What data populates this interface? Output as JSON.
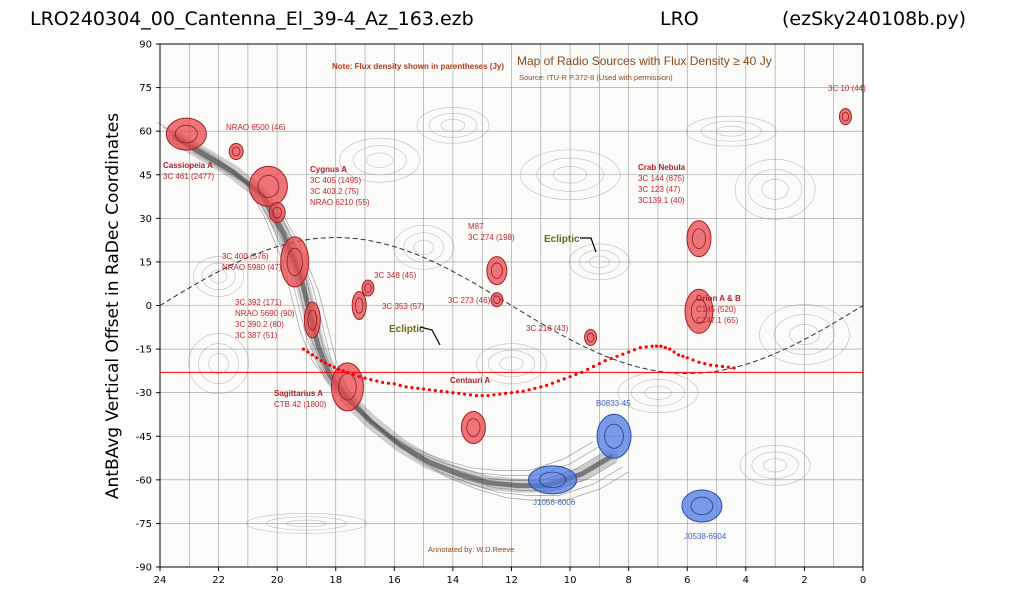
{
  "header": {
    "left": "LRO240304_00_Cantenna_El_39-4_Az_163.ezb",
    "mid": "LRO",
    "right": "(ezSky240108b.py)"
  },
  "map": {
    "note": "Note: Flux density shown in parentheses (Jy)",
    "title": "Map of Radio Sources with Flux Density ≥ 40 Jy",
    "source": "Source: ITU-R P.372-8 (Used with permission)",
    "annotated": "Annotated by: W.D.Reeve",
    "ecliptic": "Ecliptic",
    "red_sources": [
      {
        "lines": [
          "3C 10 (44)"
        ],
        "ra": 0.6,
        "dec": 65
      },
      {
        "lines": [
          "NRAO 6500 (46)"
        ],
        "ra": 21.0,
        "dec": 55
      },
      {
        "lines": [
          "Cassiopeia A",
          "3C 461 (2477)"
        ],
        "ra": 23.2,
        "dec": 59,
        "bold_first": true
      },
      {
        "lines": [
          "Cygnus A",
          "3C 405 (1495)",
          "3C 403.2 (75)",
          "NRAO 6210 (55)"
        ],
        "ra": 20.3,
        "dec": 41,
        "bold_first": true
      },
      {
        "lines": [
          "3C 400 (576)",
          "NRAO 5980 (47)"
        ],
        "ra": 19.4,
        "dec": 16
      },
      {
        "lines": [
          "3C 348 (45)"
        ],
        "ra": 16.9,
        "dec": 5
      },
      {
        "lines": [
          "3C 353 (57)"
        ],
        "ra": 17.3,
        "dec": -1
      },
      {
        "lines": [
          "3C 392 (171)",
          "NRAO 5690 (90)",
          "3C 390.2 (80)",
          "3C 387 (51)"
        ],
        "ra": 18.8,
        "dec": -6
      },
      {
        "lines": [
          "Sagittarius A",
          "CTB 42 (1800)"
        ],
        "ra": 17.7,
        "dec": -28,
        "bold_first": true
      },
      {
        "lines": [
          "M87",
          "3C 274 (198)"
        ],
        "ra": 12.5,
        "dec": 12
      },
      {
        "lines": [
          "3C 273 (46)"
        ],
        "ra": 12.5,
        "dec": 2
      },
      {
        "lines": [
          "3C 218 (43)"
        ],
        "ra": 9.3,
        "dec": -11
      },
      {
        "lines": [
          "Centauri A"
        ],
        "ra": 13.3,
        "dec": -43,
        "bold_first": true
      },
      {
        "lines": [
          "Crab Nebula",
          "3C 144 (875)",
          "3C 123 (47)",
          "3C139.1 (40)"
        ],
        "ra": 5.6,
        "dec": 22,
        "bold_first": true
      },
      {
        "lines": [
          "Orion A & B",
          "C145 (520)",
          "C147.1 (65)"
        ],
        "ra": 5.6,
        "dec": -2,
        "bold_first": true
      }
    ],
    "blue_sources": [
      {
        "lines": [
          "B0833-45"
        ],
        "ra": 8.5,
        "dec": -45
      },
      {
        "lines": [
          "J1056-6006"
        ],
        "ra": 10.6,
        "dec": -60
      },
      {
        "lines": [
          "J0538-6904"
        ],
        "ra": 5.5,
        "dec": -69
      }
    ]
  },
  "chart_data": {
    "type": "scatter",
    "title": "LRO240304_00_Cantenna_El_39-4_Az_163.ezb",
    "xlabel": "",
    "ylabel": "AntBAvg Vertical Offset in RaDec Coordinates",
    "xlim": [
      24,
      0
    ],
    "ylim": [
      -90,
      90
    ],
    "xticks": [
      24,
      22,
      20,
      18,
      16,
      14,
      12,
      10,
      8,
      6,
      4,
      2,
      0
    ],
    "yticks": [
      90,
      75,
      60,
      45,
      30,
      15,
      0,
      -15,
      -30,
      -45,
      -60,
      -75,
      -90
    ],
    "reference_line_dec": -23,
    "series": [
      {
        "color": "#ff0000",
        "x": [
          19.1,
          18.8,
          18.5,
          18.2,
          17.9,
          17.6,
          17.2,
          16.8,
          16.4,
          16.0,
          15.6,
          15.2,
          14.8,
          14.4,
          14.0,
          13.6,
          13.2,
          12.8,
          12.4,
          12.0,
          11.6,
          11.2,
          10.8,
          10.4,
          10.0,
          9.6,
          9.2,
          8.8,
          8.4,
          8.0,
          7.6,
          7.2,
          6.9,
          6.6,
          6.3,
          6.0,
          5.6,
          5.2,
          4.8,
          4.4
        ],
        "y": [
          -15,
          -17,
          -19,
          -20.5,
          -22,
          -23,
          -24.5,
          -25.5,
          -26.5,
          -27,
          -28,
          -28.5,
          -29,
          -29.5,
          -30,
          -30.5,
          -31,
          -31,
          -30.5,
          -30,
          -29.5,
          -28.5,
          -27.5,
          -26,
          -24.5,
          -23,
          -21,
          -19,
          -17.5,
          -16,
          -14.5,
          -14,
          -14,
          -15,
          -17,
          -18,
          -19.5,
          -20.5,
          -21,
          -21.5
        ]
      }
    ]
  }
}
